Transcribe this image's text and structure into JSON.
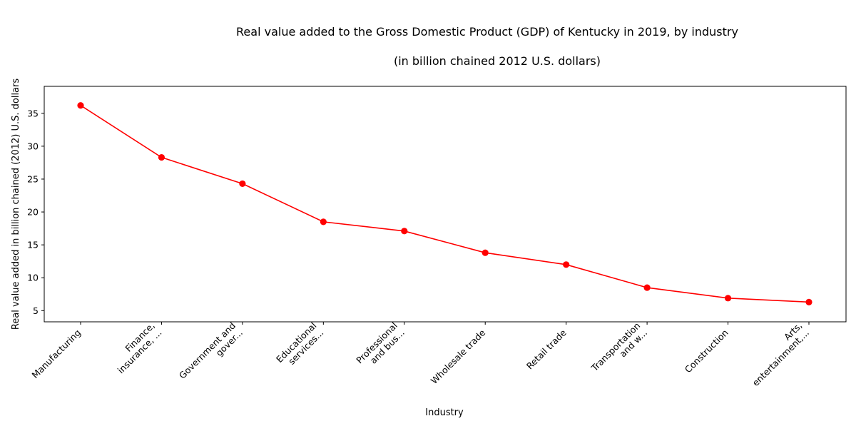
{
  "chart_data": {
    "type": "line",
    "title": "Real value added to the Gross Domestic Product (GDP) of Kentucky in 2019, by industry",
    "subtitle": "(in billion chained 2012 U.S. dollars)",
    "xlabel": "Industry",
    "ylabel": "Real value added in billion chained (2012) U.S. dollars",
    "categories": [
      [
        "Manufacturing"
      ],
      [
        "Finance,",
        "insurance, ..."
      ],
      [
        "Government and",
        "gover..."
      ],
      [
        "Educational",
        "services..."
      ],
      [
        "Professional",
        "and bus..."
      ],
      [
        "Wholesale trade"
      ],
      [
        "Retail trade"
      ],
      [
        "Transportation",
        "and w..."
      ],
      [
        "Construction"
      ],
      [
        "Arts,",
        "entertainment,..."
      ]
    ],
    "values": [
      36.2,
      28.3,
      24.3,
      18.5,
      17.1,
      13.8,
      12.0,
      8.5,
      6.9,
      6.3
    ],
    "ylim": [
      3.3,
      39.1
    ],
    "yticks": [
      5,
      10,
      15,
      20,
      25,
      30,
      35
    ],
    "grid": false,
    "legend": "none",
    "line_color": "#ff0000",
    "marker_color": "#ff0000"
  }
}
